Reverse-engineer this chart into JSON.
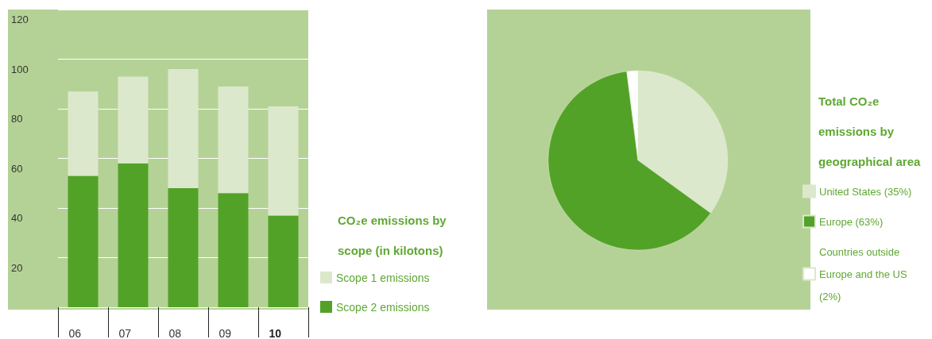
{
  "chart_data": [
    {
      "type": "bar",
      "stacked": true,
      "legend_title": "CO₂e emissions by scope (in kilotons)",
      "legend": "right",
      "grid": "y",
      "categories": [
        "06",
        "07",
        "08",
        "09",
        "10"
      ],
      "series": [
        {
          "name": "Scope 2 emissions",
          "color": "#52a227",
          "values": [
            53,
            58,
            48,
            46,
            37
          ]
        },
        {
          "name": "Scope 1 emissions",
          "color": "#dce8cc",
          "values": [
            34,
            35,
            48,
            43,
            44
          ]
        }
      ],
      "ylim": [
        0,
        120
      ],
      "yticks": [
        {
          "value": 0,
          "label": null
        },
        20,
        40,
        60,
        80,
        100,
        120
      ]
    },
    {
      "type": "pie",
      "legend_title": "Total CO₂e emissions by geographical area",
      "legend": "right",
      "categories": [
        "United States (35%)",
        "Europe (63%)",
        "Countries outside Europe and the US (2%)"
      ],
      "values": [
        35,
        63,
        2
      ],
      "colors": [
        "#dce8cc",
        "#52a227",
        "#ffffff"
      ]
    }
  ]
}
